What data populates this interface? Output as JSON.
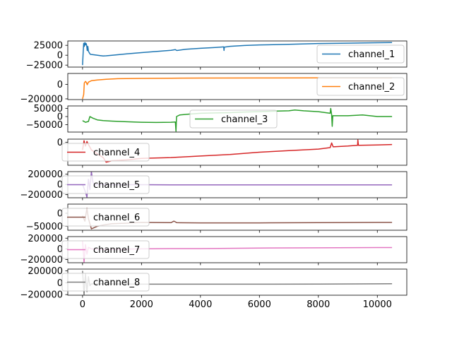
{
  "chart_data": {
    "type": "line",
    "layout": "8 stacked subplots sharing x axis",
    "x_axis": {
      "range": [
        -500,
        11000
      ],
      "ticks": [
        0,
        2000,
        4000,
        6000,
        8000,
        10000
      ],
      "tick_labels": [
        "0",
        "2000",
        "4000",
        "6000",
        "8000",
        "10000"
      ]
    },
    "panels": [
      {
        "name": "channel_1",
        "color": "#1f77b4",
        "legend_loc": "right",
        "ylim": [
          -30000,
          36000
        ],
        "yticks": [
          -25000,
          0,
          25000
        ],
        "ytick_labels": [
          "−25000",
          "0",
          "25000"
        ],
        "series": [
          [
            0,
            -25000
          ],
          [
            20,
            5000
          ],
          [
            40,
            30000
          ],
          [
            60,
            22000
          ],
          [
            80,
            32000
          ],
          [
            100,
            26000
          ],
          [
            120,
            30000
          ],
          [
            140,
            25000
          ],
          [
            160,
            12000
          ],
          [
            180,
            22000
          ],
          [
            200,
            10000
          ],
          [
            260,
            2500
          ],
          [
            300,
            2000
          ],
          [
            400,
            1000
          ],
          [
            600,
            -1000
          ],
          [
            700,
            -2000
          ],
          [
            800,
            -1500
          ],
          [
            1000,
            0
          ],
          [
            1500,
            3500
          ],
          [
            2000,
            6500
          ],
          [
            2500,
            9500
          ],
          [
            3000,
            12500
          ],
          [
            3150,
            14000
          ],
          [
            3200,
            12000
          ],
          [
            3500,
            15000
          ],
          [
            4000,
            17500
          ],
          [
            4500,
            19500
          ],
          [
            4790,
            21000
          ],
          [
            4800,
            12000
          ],
          [
            4810,
            20500
          ],
          [
            5000,
            22500
          ],
          [
            5500,
            24500
          ],
          [
            6000,
            26000
          ],
          [
            7000,
            27500
          ],
          [
            8000,
            29500
          ],
          [
            9000,
            30500
          ],
          [
            10000,
            31500
          ],
          [
            10500,
            32000
          ]
        ]
      },
      {
        "name": "channel_2",
        "color": "#ff7f0e",
        "legend_loc": "right",
        "ylim": [
          -210000,
          150000
        ],
        "yticks": [
          -200000,
          0
        ],
        "ytick_labels": [
          "−200000",
          "0"
        ],
        "series": [
          [
            0,
            -200000
          ],
          [
            40,
            -140000
          ],
          [
            60,
            20000
          ],
          [
            100,
            40000
          ],
          [
            130,
            25000
          ],
          [
            160,
            -5000
          ],
          [
            200,
            30000
          ],
          [
            300,
            50000
          ],
          [
            500,
            60000
          ],
          [
            800,
            70000
          ],
          [
            1200,
            78000
          ],
          [
            2000,
            82000
          ],
          [
            3000,
            85000
          ],
          [
            4000,
            87000
          ],
          [
            6000,
            88000
          ],
          [
            8000,
            89000
          ],
          [
            10000,
            90000
          ],
          [
            10500,
            90000
          ]
        ]
      },
      {
        "name": "channel_3",
        "color": "#2ca02c",
        "legend_loc": "center",
        "ylim": [
          -95000,
          65000
        ],
        "yticks": [
          -50000,
          0,
          50000
        ],
        "ytick_labels": [
          "−50000",
          "0",
          "50000"
        ],
        "series": [
          [
            0,
            -25000
          ],
          [
            100,
            -35000
          ],
          [
            200,
            -30000
          ],
          [
            250,
            0
          ],
          [
            350,
            -10000
          ],
          [
            500,
            -20000
          ],
          [
            700,
            -25000
          ],
          [
            1000,
            -28000
          ],
          [
            1500,
            -32000
          ],
          [
            2000,
            -35000
          ],
          [
            2500,
            -36000
          ],
          [
            3000,
            -35000
          ],
          [
            3150,
            -33000
          ],
          [
            3170,
            -90000
          ],
          [
            3190,
            0
          ],
          [
            3300,
            10000
          ],
          [
            3600,
            15000
          ],
          [
            4000,
            20000
          ],
          [
            4500,
            22000
          ],
          [
            5000,
            24000
          ],
          [
            5500,
            28000
          ],
          [
            6000,
            30000
          ],
          [
            6500,
            33000
          ],
          [
            7000,
            35000
          ],
          [
            7200,
            40000
          ],
          [
            7500,
            35000
          ],
          [
            8000,
            30000
          ],
          [
            8400,
            20000
          ],
          [
            8420,
            50000
          ],
          [
            8450,
            10000
          ],
          [
            8470,
            -60000
          ],
          [
            8490,
            5000
          ],
          [
            9000,
            5000
          ],
          [
            9500,
            10000
          ],
          [
            10000,
            0
          ],
          [
            10500,
            0
          ]
        ]
      },
      {
        "name": "channel_4",
        "color": "#d62728",
        "legend_loc": "left",
        "ylim": [
          -300000,
          40000
        ],
        "yticks": [
          0
        ],
        "ytick_labels": [
          "0"
        ],
        "series": [
          [
            0,
            -100000
          ],
          [
            50,
            20000
          ],
          [
            100,
            -50000
          ],
          [
            150,
            10000
          ],
          [
            200,
            -30000
          ],
          [
            300,
            -100000
          ],
          [
            500,
            -150000
          ],
          [
            700,
            -200000
          ],
          [
            800,
            -260000
          ],
          [
            1000,
            -240000
          ],
          [
            1500,
            -230000
          ],
          [
            2000,
            -210000
          ],
          [
            3000,
            -200000
          ],
          [
            4000,
            -180000
          ],
          [
            5000,
            -160000
          ],
          [
            6000,
            -130000
          ],
          [
            7000,
            -110000
          ],
          [
            8000,
            -90000
          ],
          [
            8400,
            -70000
          ],
          [
            8450,
            -10000
          ],
          [
            8500,
            -60000
          ],
          [
            9000,
            -50000
          ],
          [
            9330,
            -40000
          ],
          [
            9340,
            30000
          ],
          [
            9360,
            -40000
          ],
          [
            10000,
            -35000
          ],
          [
            10500,
            -30000
          ]
        ]
      },
      {
        "name": "channel_5",
        "color": "#9467bd",
        "legend_loc": "left",
        "ylim": [
          -260000,
          250000
        ],
        "yticks": [
          -200000,
          0,
          200000
        ],
        "ytick_labels": [
          "−200000",
          "0",
          "200000"
        ],
        "series": [
          [
            0,
            0
          ],
          [
            100,
            -150000
          ],
          [
            150,
            -250000
          ],
          [
            200,
            100000
          ],
          [
            250,
            -100000
          ],
          [
            300,
            250000
          ],
          [
            350,
            50000
          ],
          [
            400,
            -20000
          ],
          [
            500,
            0
          ],
          [
            1000,
            -5000
          ],
          [
            2000,
            -5000
          ],
          [
            3000,
            -8000
          ],
          [
            4000,
            -8000
          ],
          [
            5000,
            -8000
          ],
          [
            6000,
            -8000
          ],
          [
            8000,
            -8000
          ],
          [
            10000,
            -8000
          ],
          [
            10500,
            -8000
          ]
        ]
      },
      {
        "name": "channel_6",
        "color": "#8c564b",
        "legend_loc": "left",
        "ylim": [
          -65000,
          35000
        ],
        "yticks": [
          -50000,
          0
        ],
        "ytick_labels": [
          "−50000",
          "0"
        ],
        "series": [
          [
            0,
            -10000
          ],
          [
            80,
            -30000
          ],
          [
            150,
            20000
          ],
          [
            200,
            -20000
          ],
          [
            300,
            -60000
          ],
          [
            500,
            -50000
          ],
          [
            700,
            -45000
          ],
          [
            1000,
            -40000
          ],
          [
            1500,
            -38000
          ],
          [
            2000,
            -35000
          ],
          [
            3000,
            -36000
          ],
          [
            3100,
            -30000
          ],
          [
            3200,
            -36000
          ],
          [
            4000,
            -37000
          ],
          [
            5000,
            -37000
          ],
          [
            6000,
            -37000
          ],
          [
            8000,
            -36000
          ],
          [
            10000,
            -35000
          ],
          [
            10500,
            -35000
          ]
        ]
      },
      {
        "name": "channel_7",
        "color": "#e377c2",
        "legend_loc": "left",
        "ylim": [
          -260000,
          230000
        ],
        "yticks": [
          -200000,
          0,
          200000
        ],
        "ytick_labels": [
          "−200000",
          "0",
          "200000"
        ],
        "series": [
          [
            0,
            150000
          ],
          [
            50,
            -250000
          ],
          [
            100,
            80000
          ],
          [
            150,
            -100000
          ],
          [
            200,
            30000
          ],
          [
            300,
            0
          ],
          [
            500,
            -10000
          ],
          [
            1000,
            -10000
          ],
          [
            2000,
            0
          ],
          [
            3000,
            5000
          ],
          [
            4000,
            5000
          ],
          [
            5000,
            10000
          ],
          [
            6000,
            15000
          ],
          [
            8000,
            20000
          ],
          [
            10000,
            25000
          ],
          [
            10500,
            25000
          ]
        ]
      },
      {
        "name": "channel_8",
        "color": "#7f7f7f",
        "legend_loc": "left",
        "ylim": [
          -210000,
          230000
        ],
        "yticks": [
          -200000,
          0,
          200000
        ],
        "ytick_labels": [
          "−200000",
          "0",
          "200000"
        ],
        "series": [
          [
            0,
            200000
          ],
          [
            50,
            -200000
          ],
          [
            100,
            150000
          ],
          [
            150,
            -150000
          ],
          [
            200,
            100000
          ],
          [
            250,
            -50000
          ],
          [
            300,
            -20000
          ],
          [
            500,
            -15000
          ],
          [
            1000,
            -20000
          ],
          [
            2000,
            -25000
          ],
          [
            3000,
            -25000
          ],
          [
            4000,
            -25000
          ],
          [
            6000,
            -25000
          ],
          [
            8000,
            -22000
          ],
          [
            10000,
            -18000
          ],
          [
            10500,
            -16000
          ]
        ]
      }
    ]
  }
}
